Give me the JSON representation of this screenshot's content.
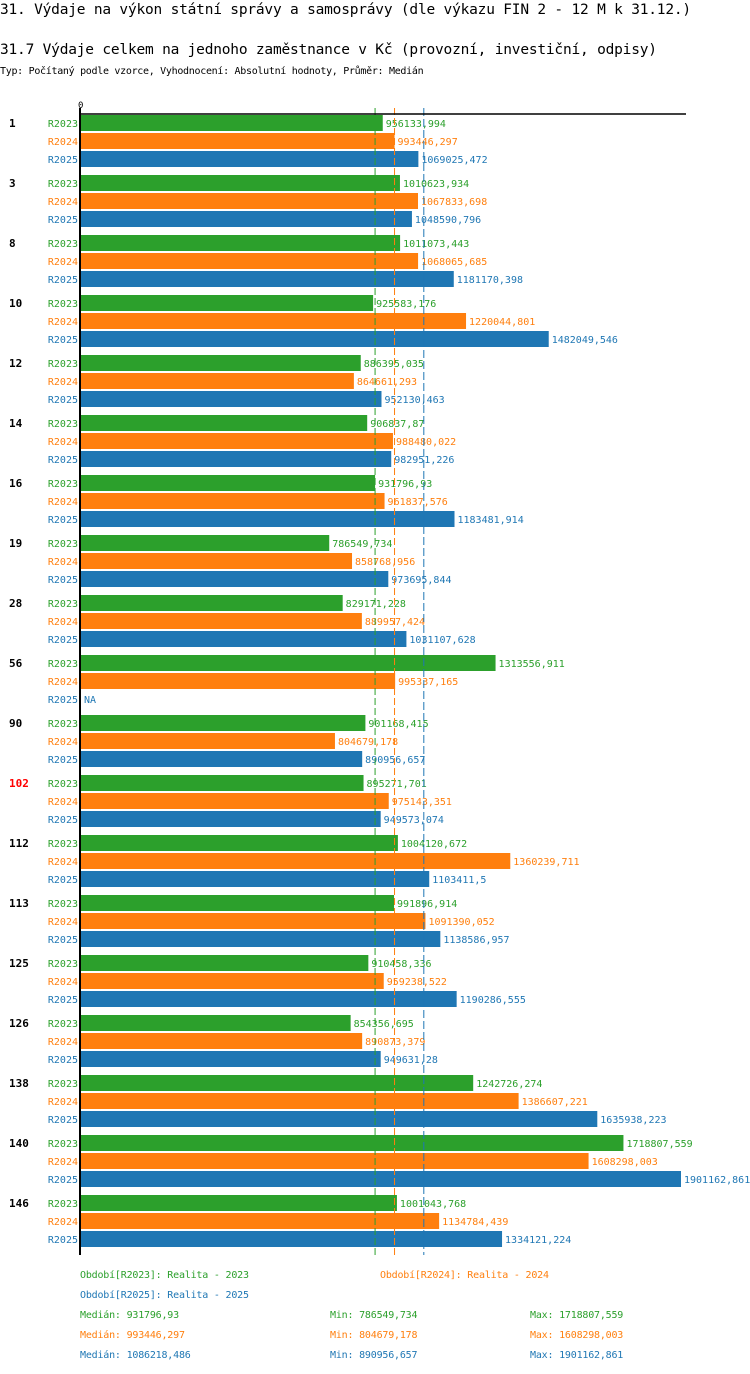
{
  "page": {
    "section_title": "31. Výdaje na výkon státní správy a samosprávy (dle výkazu FIN 2 - 12 M k 31.12.)",
    "chart_title": "31.7 Výdaje celkem na jednoho zaměstnance v Kč (provozní, investiční, odpisy)",
    "subtitle": "Typ: Počítaný podle vzorce, Vyhodnocení: Absolutní hodnoty, Průměr: Medián"
  },
  "colors": {
    "R2023": "#2ca02c",
    "R2024": "#ff7f0e",
    "R2025": "#1f77b4",
    "highlight": "#ff0000"
  },
  "chart_data": {
    "type": "bar",
    "orientation": "horizontal",
    "title": "31.7 Výdaje celkem na jednoho zaměstnance v Kč (provozní, investiční, odpisy)",
    "xlabel": "",
    "ylabel": "",
    "x_tick_labels": [
      "0"
    ],
    "xlim": [
      0,
      1901162.861
    ],
    "grid": false,
    "legend_placement": "bottom",
    "categories": [
      "1",
      "3",
      "8",
      "10",
      "12",
      "14",
      "16",
      "19",
      "28",
      "56",
      "90",
      "102",
      "112",
      "113",
      "125",
      "126",
      "138",
      "140",
      "146"
    ],
    "highlighted_category": "102",
    "series": [
      {
        "name": "R2023",
        "label": "Období[R2023]: Realita - 2023",
        "values": [
          956133.994,
          1010623.934,
          1011073.443,
          925583.176,
          886395.035,
          906837.87,
          931796.93,
          786549.734,
          829171.228,
          1313556.911,
          901168.415,
          895271.701,
          1004120.672,
          991896.914,
          910458.336,
          854356.695,
          1242726.274,
          1718807.559,
          1001043.768
        ],
        "value_labels": [
          "956133,994",
          "1010623,934",
          "1011073,443",
          "925583,176",
          "886395,035",
          "906837,87",
          "931796,93",
          "786549,734",
          "829171,228",
          "1313556,911",
          "901168,415",
          "895271,701",
          "1004120,672",
          "991896,914",
          "910458,336",
          "854356,695",
          "1242726,274",
          "1718807,559",
          "1001043,768"
        ]
      },
      {
        "name": "R2024",
        "label": "Období[R2024]: Realita - 2024",
        "values": [
          993446.297,
          1067833.698,
          1068065.685,
          1220044.801,
          864661.293,
          988480.022,
          961837.576,
          858768.956,
          889957.424,
          995337.165,
          804679.178,
          975143.351,
          1360239.711,
          1091390.052,
          959238.522,
          890873.379,
          1386607.221,
          1608298.003,
          1134784.439
        ],
        "value_labels": [
          "993446,297",
          "1067833,698",
          "1068065,685",
          "1220044,801",
          "864661,293",
          "988480,022",
          "961837,576",
          "858768,956",
          "889957,424",
          "995337,165",
          "804679,178",
          "975143,351",
          "1360239,711",
          "1091390,052",
          "959238,522",
          "890873,379",
          "1386607,221",
          "1608298,003",
          "1134784,439"
        ]
      },
      {
        "name": "R2025",
        "label": "Období[R2025]: Realita - 2025",
        "values": [
          1069025.472,
          1048590.796,
          1181170.398,
          1482049.546,
          952130.463,
          982951.226,
          1183481.914,
          973695.844,
          1031107.628,
          null,
          890956.657,
          949573.074,
          1103411.5,
          1138586.957,
          1190286.555,
          949631.28,
          1635938.223,
          1901162.861,
          1334121.224
        ],
        "value_labels": [
          "1069025,472",
          "1048590,796",
          "1181170,398",
          "1482049,546",
          "952130,463",
          "982951,226",
          "1183481,914",
          "973695,844",
          "1031107,628",
          "NA",
          "890956,657",
          "949573,074",
          "1103411,5",
          "1138586,957",
          "1190286,555",
          "949631,28",
          "1635938,223",
          "1901162,861",
          "1334121,224"
        ]
      }
    ],
    "medians": {
      "R2023": 931796.93,
      "R2024": 993446.297,
      "R2025": 1086218.486
    },
    "stats": [
      {
        "series": "R2023",
        "median": "Medián: 931796,93",
        "min": "Min: 786549,734",
        "max": "Max: 1718807,559"
      },
      {
        "series": "R2024",
        "median": "Medián: 993446,297",
        "min": "Min: 804679,178",
        "max": "Max: 1608298,003"
      },
      {
        "series": "R2025",
        "median": "Medián: 1086218,486",
        "min": "Min: 890956,657",
        "max": "Max: 1901162,861"
      }
    ]
  }
}
